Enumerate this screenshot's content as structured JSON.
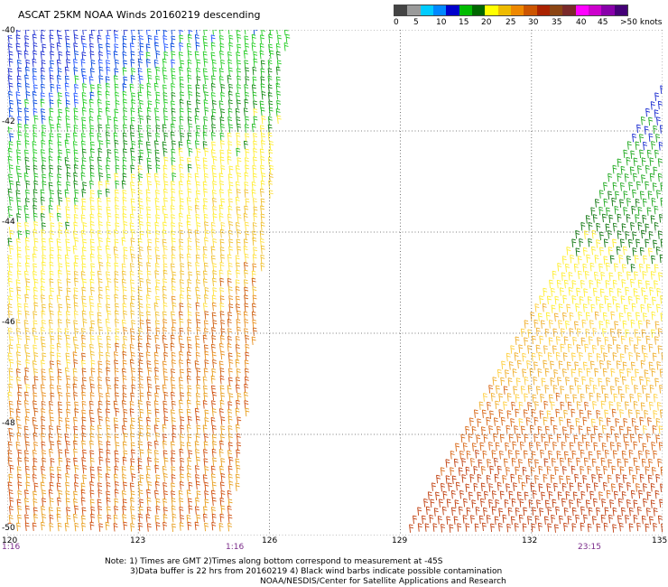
{
  "title": "ASCAT 25KM NOAA Winds 20160219 descending",
  "colorbar": {
    "colors": [
      "#444444",
      "#9a9a9a",
      "#00ccff",
      "#0088ff",
      "#0000cc",
      "#00bb00",
      "#006600",
      "#ffff00",
      "#eebb00",
      "#ee8800",
      "#cc5500",
      "#aa2200",
      "#8b4513",
      "#7a2a2a",
      "#ff00ff",
      "#cc00cc",
      "#8800aa",
      "#440077"
    ],
    "labels": [
      "0",
      "5",
      "10",
      "15",
      "20",
      "25",
      "30",
      "35",
      "40",
      "45",
      ">50 knots"
    ]
  },
  "map": {
    "lon_labels": [
      "120",
      "123",
      "126",
      "129",
      "132",
      "135"
    ],
    "lat_labels": [
      "-40",
      "-42",
      "-44",
      "-46",
      "-48",
      "-50"
    ],
    "lon_range": [
      120,
      135
    ],
    "lat_range": [
      -40,
      -50
    ],
    "time_labels": [
      "1:16",
      "1:16",
      "23:15"
    ]
  },
  "notes": [
    "Note: 1) Times are GMT 2)Times along bottom correspond to measurement at -45S",
    "3)Data buffer is 22 hrs from 20160219 4) Black wind barbs indicate possible contamination",
    "NOAA/NESDIS/Center for Satellite Applications and Research"
  ]
}
